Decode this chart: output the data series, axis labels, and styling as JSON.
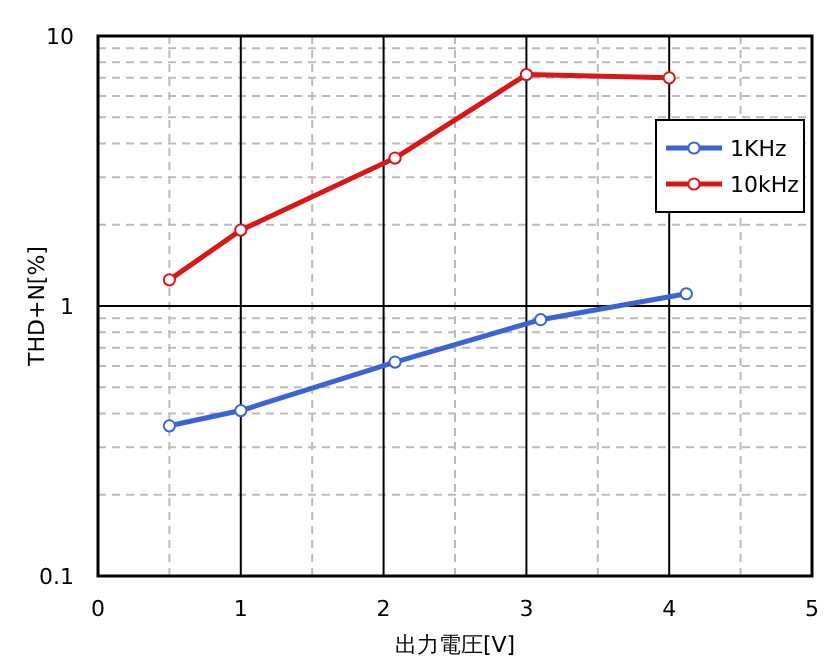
{
  "chart_data": {
    "type": "line",
    "xlabel": "出力電圧[V]",
    "ylabel": "THD+N[%]",
    "log": "y",
    "xlim": [
      0,
      5
    ],
    "xticks": [
      0,
      1,
      2,
      3,
      4,
      5
    ],
    "ylim": [
      0.1,
      10
    ],
    "yticks": [
      0.1,
      1,
      10
    ],
    "grid": true,
    "legend": "right",
    "marker": "circle",
    "line_style": "solid",
    "series": [
      {
        "name": "1KHz",
        "color": "#3a63d6",
        "x": [
          0.5,
          1.0,
          2.08,
          3.1,
          4.12
        ],
        "values": [
          0.36,
          0.41,
          0.62,
          0.89,
          1.11
        ]
      },
      {
        "name": "10kHz",
        "color": "#d81818",
        "x": [
          0.5,
          1.0,
          2.08,
          3.0,
          4.0
        ],
        "values": [
          1.25,
          1.91,
          3.53,
          7.2,
          7.0
        ]
      }
    ]
  }
}
